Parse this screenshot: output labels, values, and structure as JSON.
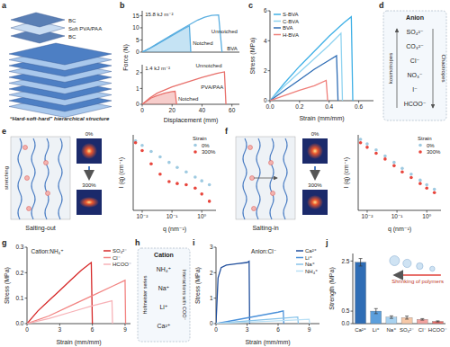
{
  "panel_labels": [
    "a",
    "b",
    "c",
    "d",
    "e",
    "f",
    "g",
    "h",
    "i",
    "j"
  ],
  "diagram_a": {
    "layers": [
      "BC",
      "Soft PVA/PAA",
      "BC"
    ],
    "caption": "“Hard-soft-hard” hierarchical structure"
  },
  "diagram_d": {
    "title": "Anion",
    "ions": [
      "SO₄²⁻",
      "CO₃²⁻",
      "Cl⁻",
      "NO₃⁻",
      "I⁻",
      "HCOO⁻"
    ],
    "left": "kosmotropes",
    "right": "Chaotropes"
  },
  "diagram_e": {
    "action": "stretching",
    "strains": [
      "0%",
      "300%"
    ],
    "label": "Salting-out"
  },
  "diagram_f": {
    "strains": [
      "0%",
      "300%"
    ],
    "label": "Salting-in"
  },
  "diagram_h": {
    "title": "Cation",
    "ions": [
      "NH₄⁺",
      "Na⁺",
      "Li⁺",
      "Ca²⁺"
    ],
    "series_label": "Hofmeister series",
    "arrow_label": "Interactions with COO⁻"
  },
  "chart_data": [
    {
      "type": "line",
      "y_label": "Force (N)",
      "annotations": [
        "15.8 kJ m⁻²",
        "Notched",
        "Unnotched",
        "BVA"
      ],
      "xlim": [
        0,
        14
      ],
      "ylim": [
        0,
        17
      ],
      "yticks": [
        0,
        5,
        10,
        15
      ],
      "series": [
        {
          "type": "area",
          "color": "#5aaee0",
          "x": [
            0,
            1,
            2,
            3,
            4,
            5,
            6,
            6.8,
            7
          ],
          "values": [
            0,
            1.4,
            3,
            4.6,
            6.3,
            8,
            9.6,
            10.8,
            0
          ]
        },
        {
          "type": "line",
          "color": "#5aaee0",
          "x": [
            0,
            1,
            2,
            4,
            6,
            8,
            9,
            10,
            11,
            11.5
          ],
          "values": [
            0,
            1.5,
            3.2,
            6.6,
            10,
            13.2,
            14.4,
            15.1,
            15.3,
            0
          ]
        }
      ]
    },
    {
      "type": "line",
      "x_label": "Displacement (mm)",
      "annotations": [
        "1.4 kJ m⁻²",
        "Notched",
        "Unnotched",
        "PVA/PAA"
      ],
      "xlim": [
        0,
        65
      ],
      "ylim": [
        0,
        2.5
      ],
      "xticks": [
        0,
        20,
        40,
        60
      ],
      "yticks": [
        0,
        1,
        2
      ],
      "series": [
        {
          "type": "area",
          "color": "#e8706b",
          "x": [
            0,
            3,
            6,
            10,
            15,
            20,
            22,
            23
          ],
          "values": [
            0,
            0.2,
            0.4,
            0.55,
            0.7,
            0.8,
            0.82,
            0
          ]
        },
        {
          "type": "line",
          "color": "#e8706b",
          "x": [
            0,
            5,
            10,
            20,
            30,
            40,
            50,
            55,
            56
          ],
          "values": [
            0,
            0.4,
            0.7,
            1.1,
            1.4,
            1.7,
            1.95,
            2.05,
            0
          ]
        }
      ]
    },
    {
      "type": "line",
      "x_label": "Strain (mm/mm)",
      "y_label": "Stress (MPa)",
      "legend": "top-left",
      "xlim": [
        0,
        0.7
      ],
      "ylim": [
        0,
        6
      ],
      "xticks": [
        {
          "value": 0,
          "label": "0.0"
        },
        0.2,
        0.4,
        0.6
      ],
      "yticks": [
        0,
        2,
        4,
        6
      ],
      "series": [
        {
          "name": "S-BVA",
          "color": "#3fb0e6",
          "x": [
            0,
            0.1,
            0.2,
            0.3,
            0.4,
            0.5,
            0.55,
            0.56
          ],
          "values": [
            0,
            1.2,
            2.3,
            3.3,
            4.3,
            5.2,
            5.6,
            0
          ]
        },
        {
          "name": "C-BVA",
          "color": "#8fd3f0",
          "x": [
            0,
            0.1,
            0.2,
            0.3,
            0.4,
            0.48,
            0.49
          ],
          "values": [
            0,
            1.0,
            1.9,
            2.8,
            3.7,
            4.5,
            0
          ]
        },
        {
          "name": "BVA",
          "color": "#2f6db5",
          "x": [
            0,
            0.1,
            0.2,
            0.3,
            0.4,
            0.45,
            0.46
          ],
          "values": [
            0,
            0.7,
            1.4,
            2.1,
            2.7,
            3.0,
            0
          ]
        },
        {
          "name": "H-BVA",
          "color": "#ef7f7a",
          "x": [
            0,
            0.1,
            0.2,
            0.3,
            0.38,
            0.39
          ],
          "values": [
            0,
            0.35,
            0.7,
            1.0,
            1.35,
            0
          ]
        }
      ]
    },
    {
      "type": "scatter",
      "log": true,
      "tick_labels": "x",
      "x_label": "q (nm⁻¹)",
      "y_label": "I (q) (cm⁻¹)",
      "legend": "top-right",
      "legend_title": "Strain",
      "xlim": [
        0.005,
        3
      ],
      "ylim": [
        0.01,
        1000
      ],
      "xticks": [
        {
          "value": 0.01,
          "label": "10⁻²"
        },
        {
          "value": 0.1,
          "label": "10⁻¹"
        },
        {
          "value": 1,
          "label": "10⁰"
        }
      ],
      "series": [
        {
          "name": "0%",
          "color": "#9ecae1",
          "x": [
            0.006,
            0.01,
            0.02,
            0.04,
            0.08,
            0.15,
            0.3,
            0.6,
            1.0,
            1.8
          ],
          "values": [
            400,
            200,
            80,
            35,
            15,
            7,
            3.5,
            1.6,
            0.9,
            0.5
          ]
        },
        {
          "name": "300%",
          "color": "#e8453c",
          "x": [
            0.006,
            0.01,
            0.02,
            0.04,
            0.08,
            0.15,
            0.3,
            0.6,
            1.0,
            1.8
          ],
          "values": [
            300,
            90,
            12,
            2.5,
            0.8,
            0.6,
            0.5,
            0.3,
            0.12,
            0.04
          ]
        }
      ]
    },
    {
      "type": "scatter",
      "log": true,
      "tick_labels": "x",
      "x_label": "q (nm⁻¹)",
      "y_label": "I (q) (cm⁻¹)",
      "legend": "top-right",
      "legend_title": "Strain",
      "xlim": [
        0.005,
        3
      ],
      "ylim": [
        0.01,
        1000
      ],
      "xticks": [
        {
          "value": 0.01,
          "label": "10⁻²"
        },
        {
          "value": 0.1,
          "label": "10⁻¹"
        },
        {
          "value": 1,
          "label": "10⁰"
        }
      ],
      "series": [
        {
          "name": "0%",
          "color": "#9ecae1",
          "x": [
            0.006,
            0.01,
            0.02,
            0.04,
            0.08,
            0.15,
            0.3,
            0.6,
            1.0,
            1.8
          ],
          "values": [
            500,
            250,
            100,
            40,
            15,
            6,
            2.5,
            1,
            0.5,
            0.25
          ]
        },
        {
          "name": "300%",
          "color": "#e8453c",
          "x": [
            0.006,
            0.01,
            0.02,
            0.04,
            0.08,
            0.15,
            0.3,
            0.6,
            1.0,
            1.8
          ],
          "values": [
            300,
            150,
            60,
            25,
            9,
            3.5,
            1.5,
            0.6,
            0.3,
            0.15
          ]
        }
      ]
    },
    {
      "type": "line",
      "title": "Cation:NH₄⁺",
      "x_label": "Strain (mm/mm)",
      "y_label": "Stress (MPa)",
      "legend": "top-right",
      "xlim": [
        0,
        9.5
      ],
      "ylim": [
        0,
        0.3
      ],
      "xticks": [
        0,
        3,
        6,
        9
      ],
      "yticks": [
        {
          "value": 0,
          "label": "0.0"
        },
        0.1,
        0.2,
        0.3
      ],
      "series": [
        {
          "name": "SO₄²⁻",
          "color": "#d62828",
          "x": [
            0,
            1,
            2,
            3,
            4,
            5,
            5.9,
            6.0
          ],
          "values": [
            0,
            0.05,
            0.09,
            0.13,
            0.17,
            0.21,
            0.24,
            0
          ]
        },
        {
          "name": "Cl⁻",
          "color": "#f28482",
          "x": [
            0,
            2,
            4,
            6,
            8,
            9,
            9.05
          ],
          "values": [
            0,
            0.03,
            0.07,
            0.11,
            0.15,
            0.17,
            0
          ]
        },
        {
          "name": "HCOO⁻",
          "color": "#f7b2b7",
          "x": [
            0,
            2,
            4,
            6,
            7.8,
            7.85
          ],
          "values": [
            0,
            0.02,
            0.045,
            0.07,
            0.09,
            0
          ]
        }
      ]
    },
    {
      "type": "line",
      "title": "Anion:Cl⁻",
      "x_label": "Strain (mm/mm)",
      "y_label": "Stress (MPa)",
      "legend": "top-right",
      "xlim": [
        0,
        10
      ],
      "ylim": [
        0,
        3
      ],
      "xticks": [
        0,
        3,
        6,
        9
      ],
      "yticks": [
        0,
        1,
        2,
        3
      ],
      "series": [
        {
          "name": "Ca²⁺",
          "color": "#1f4e9c",
          "x": [
            0,
            0.2,
            0.5,
            1,
            2,
            3,
            3.2,
            3.25
          ],
          "values": [
            0,
            1.8,
            2.2,
            2.3,
            2.35,
            2.4,
            2.45,
            0
          ]
        },
        {
          "name": "Li⁺",
          "color": "#4a90d9",
          "x": [
            0,
            2,
            4,
            6,
            6.5,
            6.55
          ],
          "values": [
            0,
            0.15,
            0.3,
            0.45,
            0.5,
            0
          ]
        },
        {
          "name": "Na⁺",
          "color": "#87c3ea",
          "x": [
            0,
            2,
            4,
            6,
            7.9,
            7.95
          ],
          "values": [
            0,
            0.07,
            0.14,
            0.2,
            0.26,
            0
          ]
        },
        {
          "name": "NH₄⁺",
          "color": "#b9e0f5",
          "x": [
            0,
            3,
            6,
            9,
            9.05
          ],
          "values": [
            0,
            0.06,
            0.11,
            0.17,
            0
          ]
        }
      ]
    },
    {
      "type": "bar",
      "y_label": "Strength (MPa)",
      "annotations": [
        "Shrinking of polymers"
      ],
      "categories": [
        "Ca²⁺",
        "Li⁺",
        "Na⁺",
        "SO₄²⁻",
        "Cl⁻",
        "HCOO⁻"
      ],
      "values": [
        2.45,
        0.5,
        0.26,
        0.24,
        0.17,
        0.09
      ],
      "errors": [
        0.15,
        0.1,
        0.05,
        0.06,
        0.03,
        0.02
      ],
      "colors": [
        "#2f6db5",
        "#5c9fdc",
        "#a8d2f0",
        "#f6c9a8",
        "#f2a3a0",
        "#e8706b"
      ],
      "ylim": [
        0,
        2.8
      ],
      "yticks": [
        {
          "value": 0,
          "label": "0.0"
        },
        0.5,
        2.5
      ]
    }
  ]
}
